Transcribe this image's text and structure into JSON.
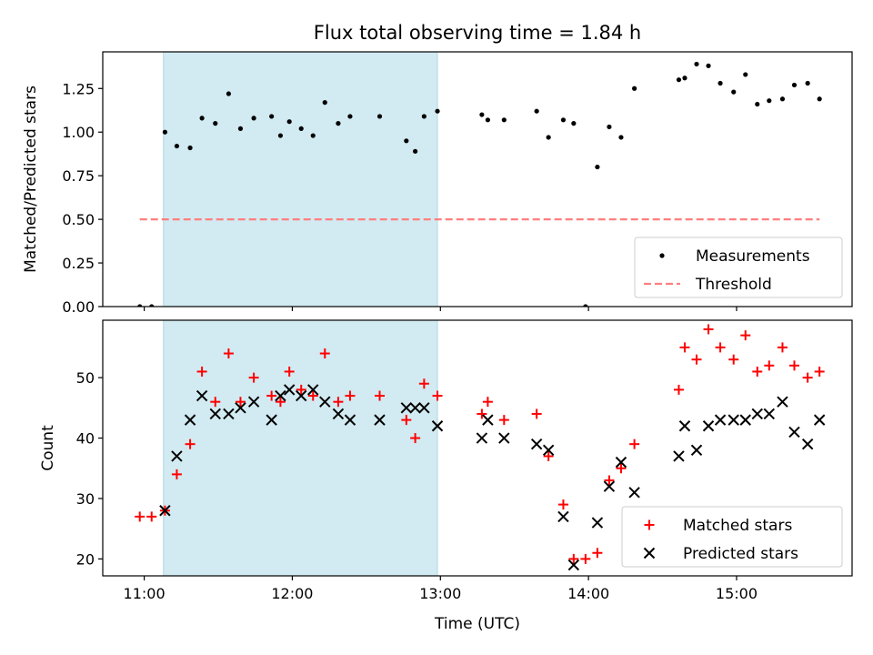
{
  "figure": {
    "title": "Flux total observing time = 1.84 h"
  },
  "chart_data": [
    {
      "type": "scatter",
      "panel": "top",
      "ylabel": "Matched/Predicted stars",
      "xlabel": "",
      "x_unit": "hours UTC",
      "xlim": [
        10.72,
        15.78
      ],
      "ylim": [
        0.0,
        1.46
      ],
      "yticks": [
        0.0,
        0.25,
        0.5,
        0.75,
        1.0,
        1.25
      ],
      "ytick_labels": [
        "0.00",
        "0.25",
        "0.50",
        "0.75",
        "1.00",
        "1.25"
      ],
      "xticks": [
        11.0,
        12.0,
        13.0,
        14.0,
        15.0
      ],
      "grid": false,
      "legend_position": "lower-right",
      "shaded_interval": {
        "x_start": 11.13,
        "x_end": 12.98,
        "color": "#add8e6"
      },
      "series": [
        {
          "name": "Measurements",
          "marker": "dot",
          "color": "#000000",
          "x": [
            10.97,
            11.05,
            11.14,
            11.22,
            11.31,
            11.39,
            11.48,
            11.57,
            11.65,
            11.74,
            11.86,
            11.92,
            11.98,
            12.06,
            12.14,
            12.22,
            12.31,
            12.39,
            12.59,
            12.77,
            12.83,
            12.89,
            12.98,
            13.28,
            13.32,
            13.43,
            13.65,
            13.73,
            13.83,
            13.9,
            13.98,
            14.06,
            14.14,
            14.22,
            14.31,
            14.61,
            14.65,
            14.73,
            14.81,
            14.89,
            14.98,
            15.06,
            15.14,
            15.22,
            15.31,
            15.39,
            15.48,
            15.56
          ],
          "y": [
            0.0,
            0.0,
            1.0,
            0.92,
            0.91,
            1.08,
            1.05,
            1.22,
            1.02,
            1.08,
            1.09,
            0.98,
            1.06,
            1.02,
            0.98,
            1.17,
            1.05,
            1.09,
            1.09,
            0.95,
            0.89,
            1.09,
            1.12,
            1.1,
            1.07,
            1.07,
            1.12,
            0.97,
            1.07,
            1.05,
            0.0,
            0.8,
            1.03,
            0.97,
            1.25,
            1.3,
            1.31,
            1.39,
            1.38,
            1.28,
            1.23,
            1.33,
            1.16,
            1.18,
            1.19,
            1.27,
            1.28,
            1.19
          ]
        },
        {
          "name": "Threshold",
          "style": "dashed",
          "color": "#ff7f7f",
          "x": [
            10.97,
            15.56
          ],
          "y": [
            0.5,
            0.5
          ]
        }
      ]
    },
    {
      "type": "scatter",
      "panel": "bottom",
      "ylabel": "Count",
      "xlabel": "Time (UTC)",
      "x_unit": "hours UTC",
      "xlim": [
        10.72,
        15.78
      ],
      "ylim": [
        17.2,
        59.5
      ],
      "yticks": [
        20,
        30,
        40,
        50
      ],
      "ytick_labels": [
        "20",
        "30",
        "40",
        "50"
      ],
      "xticks": [
        11.0,
        12.0,
        13.0,
        14.0,
        15.0
      ],
      "xtick_labels": [
        "11:00",
        "12:00",
        "13:00",
        "14:00",
        "15:00"
      ],
      "grid": false,
      "legend_position": "lower-right",
      "shaded_interval": {
        "x_start": 11.13,
        "x_end": 12.98,
        "color": "#add8e6"
      },
      "series": [
        {
          "name": "Matched stars",
          "marker": "plus",
          "color": "#ff0000",
          "x": [
            10.97,
            11.05,
            11.14,
            11.22,
            11.31,
            11.39,
            11.48,
            11.57,
            11.65,
            11.74,
            11.86,
            11.92,
            11.98,
            12.06,
            12.14,
            12.22,
            12.31,
            12.39,
            12.59,
            12.77,
            12.83,
            12.89,
            12.98,
            13.28,
            13.32,
            13.43,
            13.65,
            13.73,
            13.83,
            13.9,
            13.98,
            14.06,
            14.14,
            14.22,
            14.31,
            14.61,
            14.65,
            14.73,
            14.81,
            14.89,
            14.98,
            15.06,
            15.14,
            15.22,
            15.31,
            15.39,
            15.48,
            15.56
          ],
          "y": [
            27,
            27,
            28,
            34,
            39,
            51,
            46,
            54,
            46,
            50,
            47,
            46,
            51,
            48,
            47,
            54,
            46,
            47,
            47,
            43,
            40,
            49,
            47,
            44,
            46,
            43,
            44,
            37,
            29,
            20,
            20,
            21,
            33,
            35,
            39,
            48,
            55,
            53,
            58,
            55,
            53,
            57,
            51,
            52,
            55,
            52,
            50,
            51
          ]
        },
        {
          "name": "Predicted stars",
          "marker": "x",
          "color": "#000000",
          "x": [
            11.14,
            11.22,
            11.31,
            11.39,
            11.48,
            11.57,
            11.65,
            11.74,
            11.86,
            11.92,
            11.98,
            12.06,
            12.14,
            12.22,
            12.31,
            12.39,
            12.59,
            12.77,
            12.83,
            12.89,
            12.98,
            13.28,
            13.32,
            13.43,
            13.65,
            13.73,
            13.83,
            13.9,
            14.06,
            14.14,
            14.22,
            14.31,
            14.61,
            14.65,
            14.73,
            14.81,
            14.89,
            14.98,
            15.06,
            15.14,
            15.22,
            15.31,
            15.39,
            15.48,
            15.56
          ],
          "y": [
            28,
            37,
            43,
            47,
            44,
            44,
            45,
            46,
            43,
            47,
            48,
            47,
            48,
            46,
            44,
            43,
            43,
            45,
            45,
            45,
            42,
            40,
            43,
            40,
            39,
            38,
            27,
            19,
            26,
            32,
            36,
            31,
            37,
            42,
            38,
            42,
            43,
            43,
            43,
            44,
            44,
            46,
            41,
            39,
            43
          ]
        }
      ]
    }
  ]
}
